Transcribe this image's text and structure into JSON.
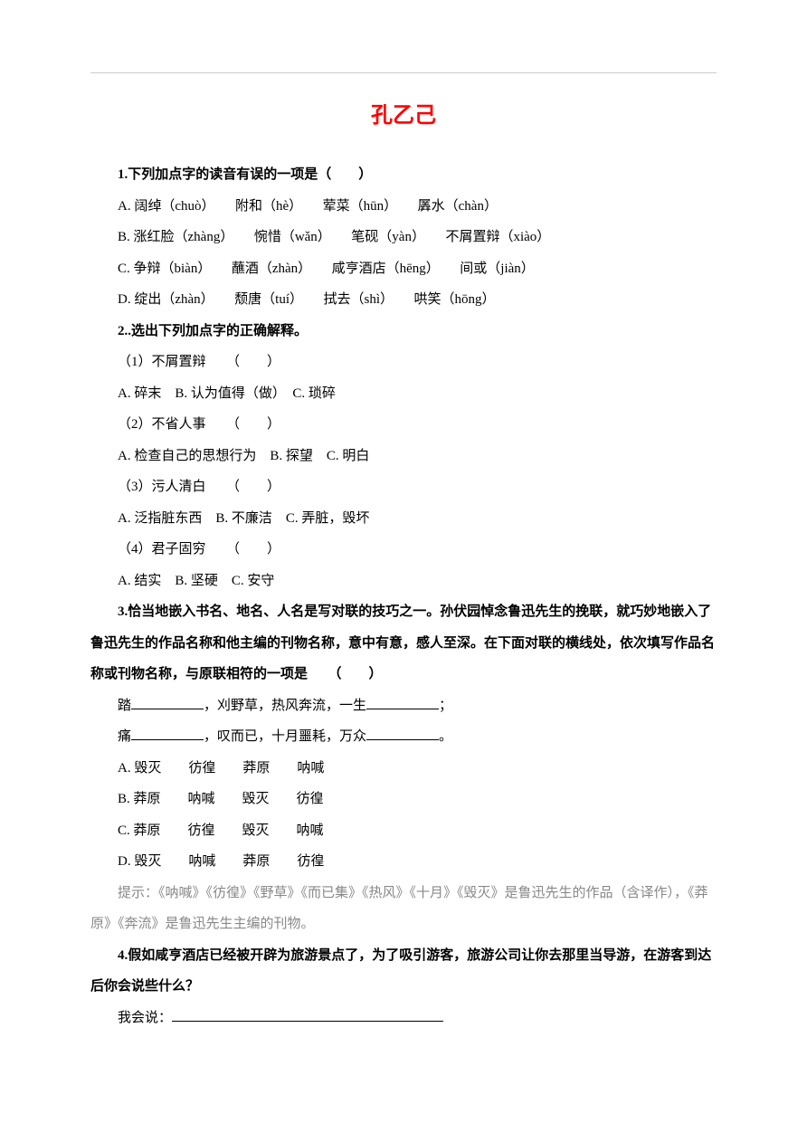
{
  "title": "孔乙己",
  "q1": {
    "stem": "1.下列加点字的读音有误的一项是（　　）",
    "options": [
      "A. 阔绰（chuò）　　附和（hè）　　荤菜（hūn）　　羼水（chàn）",
      "B. 涨红脸（zhàng）　　惋惜（wǎn）　　笔砚（yàn）　　不屑置辩（xiào）",
      "C. 争辩（biàn）　　蘸酒（zhàn）　　咸亨酒店（hēng）　　间或（jiàn）",
      "D. 绽出（zhàn）　　颓唐（tuí）　　拭去（shì）　　哄笑（hōng）"
    ]
  },
  "q2": {
    "stem": "2..选出下列加点字的正确解释。",
    "subs": [
      {
        "label": "（1）不屑置辩　　（　　）",
        "opts": "A. 碎末　B. 认为值得（做）　C. 琐碎"
      },
      {
        "label": "（2）不省人事　　（　　）",
        "opts": "A. 检查自己的思想行为　B. 探望　C. 明白"
      },
      {
        "label": "（3）污人清白　　（　　）",
        "opts": "A. 泛指脏东西　B. 不廉洁　C. 弄脏，毁坏"
      },
      {
        "label": "（4）君子固穷　　（　　）",
        "opts": "A. 结实　B. 坚硬　C. 安守"
      }
    ]
  },
  "q3": {
    "stem": "3.恰当地嵌入书名、地名、人名是写对联的技巧之一。孙伏园悼念鲁迅先生的挽联，就巧妙地嵌入了鲁迅先生的作品名称和他主编的刊物名称，意中有意，感人至深。在下面对联的横线处，依次填写作品名称或刊物名称，与原联相符的一项是　　（　　）",
    "couplet1a": "踏",
    "couplet1b": "，刈野草，热风奔流，一生",
    "couplet1c": "；",
    "couplet2a": "痛",
    "couplet2b": "，叹而已，十月噩耗，万众",
    "couplet2c": "。",
    "options": [
      "A. 毁灭　　彷徨　　莽原　　呐喊",
      "B. 莽原　　呐喊　　毁灭　　彷徨",
      "C. 莽原　　彷徨　　毁灭　　呐喊",
      "D. 毁灭　　呐喊　　莽原　　彷徨"
    ],
    "hint": "提示：《呐喊》《彷徨》《野草》《而已集》《热风》《十月》《毁灭》是鲁迅先生的作品（含译作），《莽原》《奔流》是鲁迅先生主编的刊物。"
  },
  "q4": {
    "stem": "4.假如咸亨酒店已经被开辟为旅游景点了，为了吸引游客，旅游公司让你去那里当导游，在游客到达后你会说些什么？",
    "prompt": "我会说："
  }
}
